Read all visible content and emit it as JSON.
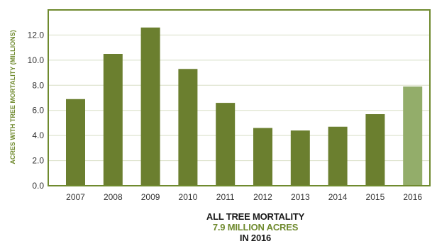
{
  "chart_data": {
    "type": "bar",
    "categories": [
      "2007",
      "2008",
      "2009",
      "2010",
      "2011",
      "2012",
      "2013",
      "2014",
      "2015",
      "2016"
    ],
    "values": [
      6.9,
      10.5,
      12.6,
      9.3,
      6.6,
      4.6,
      4.4,
      4.7,
      5.7,
      7.9
    ],
    "ylabel": "ACRES WITH TREE MORTALITY (MILLIONS)",
    "ylim": [
      0,
      14
    ],
    "yticks": [
      "0.0",
      "2.0",
      "4.0",
      "6.0",
      "8.0",
      "10.0",
      "12.0"
    ],
    "grid": true,
    "colors": {
      "bar": "#6b7f2f",
      "highlight": "#93ad6a",
      "frame": "#6f8a2e",
      "grid": "#d8dfc6"
    },
    "highlight_category": "2016"
  },
  "caption": {
    "line1": "ALL TREE MORTALITY",
    "line2": "7.9 MILLION ACRES",
    "line3": "IN 2016"
  }
}
